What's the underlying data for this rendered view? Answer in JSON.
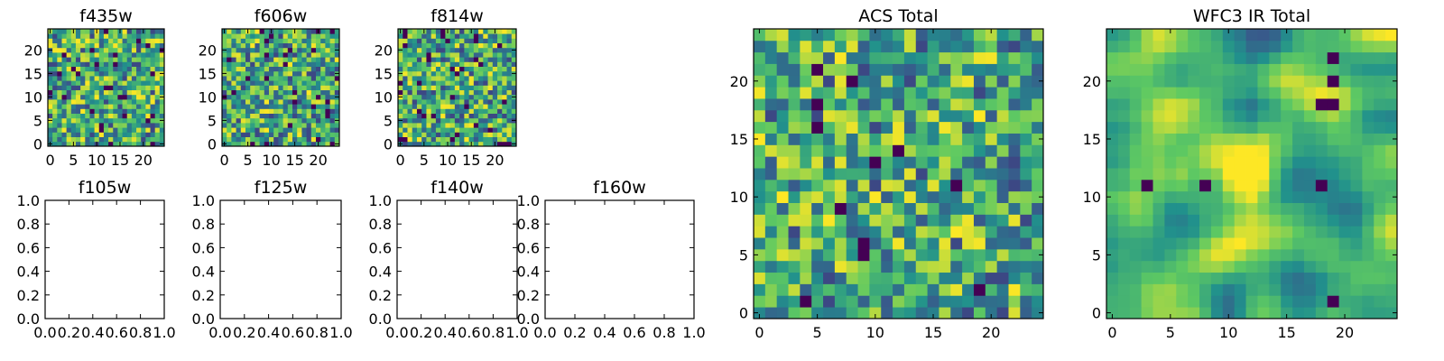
{
  "colormap": [
    "#440154",
    "#3b528b",
    "#21918c",
    "#5ec962",
    "#fde725"
  ],
  "chart_data": [
    {
      "type": "heatmap",
      "title": "f435w",
      "xlim": [
        -0.5,
        24.5
      ],
      "ylim": [
        -0.5,
        24.5
      ],
      "xticks": [
        0,
        5,
        10,
        15,
        20
      ],
      "yticks": [
        0,
        5,
        10,
        15,
        20
      ],
      "size": 25,
      "smoothness": 0,
      "seed": 11,
      "dark_fraction": 0.04
    },
    {
      "type": "heatmap",
      "title": "f606w",
      "xlim": [
        -0.5,
        24.5
      ],
      "ylim": [
        -0.5,
        24.5
      ],
      "xticks": [
        0,
        5,
        10,
        15,
        20
      ],
      "yticks": [
        0,
        5,
        10,
        15,
        20
      ],
      "size": 25,
      "smoothness": 0,
      "seed": 23,
      "dark_fraction": 0.04
    },
    {
      "type": "heatmap",
      "title": "f814w",
      "xlim": [
        -0.5,
        24.5
      ],
      "ylim": [
        -0.5,
        24.5
      ],
      "xticks": [
        0,
        5,
        10,
        15,
        20
      ],
      "yticks": [
        0,
        5,
        10,
        15,
        20
      ],
      "size": 25,
      "smoothness": 0,
      "seed": 37,
      "dark_fraction": 0.04
    },
    {
      "type": "empty",
      "title": "f105w",
      "xlim": [
        0,
        1
      ],
      "ylim": [
        0,
        1
      ],
      "xticks": [
        "0.0",
        "0.2",
        "0.4",
        "0.6",
        "0.8",
        "1.0"
      ],
      "yticks": [
        "0.0",
        "0.2",
        "0.4",
        "0.6",
        "0.8",
        "1.0"
      ]
    },
    {
      "type": "empty",
      "title": "f125w",
      "xlim": [
        0,
        1
      ],
      "ylim": [
        0,
        1
      ],
      "xticks": [
        "0.0",
        "0.2",
        "0.4",
        "0.6",
        "0.8",
        "1.0"
      ],
      "yticks": [
        "0.0",
        "0.2",
        "0.4",
        "0.6",
        "0.8",
        "1.0"
      ]
    },
    {
      "type": "empty",
      "title": "f140w",
      "xlim": [
        0,
        1
      ],
      "ylim": [
        0,
        1
      ],
      "xticks": [
        "0.0",
        "0.2",
        "0.4",
        "0.6",
        "0.8",
        "1.0"
      ],
      "yticks": [
        "0.0",
        "0.2",
        "0.4",
        "0.6",
        "0.8",
        "1.0"
      ]
    },
    {
      "type": "empty",
      "title": "f160w",
      "xlim": [
        0,
        1
      ],
      "ylim": [
        0,
        1
      ],
      "xticks": [
        "0.0",
        "0.2",
        "0.4",
        "0.6",
        "0.8",
        "1.0"
      ],
      "yticks": [
        "0.0",
        "0.2",
        "0.4",
        "0.6",
        "0.8",
        "1.0"
      ]
    },
    {
      "type": "heatmap",
      "title": "ACS Total",
      "xlim": [
        -0.5,
        24.5
      ],
      "ylim": [
        -0.5,
        24.5
      ],
      "xticks": [
        0,
        5,
        10,
        15,
        20
      ],
      "yticks": [
        0,
        5,
        10,
        15,
        20
      ],
      "size": 25,
      "smoothness": 0,
      "seed": 53,
      "dark_fraction": 0.025
    },
    {
      "type": "heatmap",
      "title": "WFC3 IR Total",
      "xlim": [
        -0.5,
        24.5
      ],
      "ylim": [
        -0.5,
        24.5
      ],
      "xticks": [
        0,
        5,
        10,
        15,
        20
      ],
      "yticks": [
        0,
        5,
        10,
        15,
        20
      ],
      "size": 25,
      "smoothness": 2,
      "seed": 71,
      "dark_fraction": 0.0,
      "bright_blob": [
        12,
        12
      ],
      "dark_spots": [
        [
          19,
          22
        ],
        [
          19,
          20
        ],
        [
          18,
          18
        ],
        [
          19,
          18
        ],
        [
          3,
          11
        ],
        [
          8,
          11
        ],
        [
          18,
          11
        ],
        [
          19,
          1
        ]
      ]
    }
  ]
}
